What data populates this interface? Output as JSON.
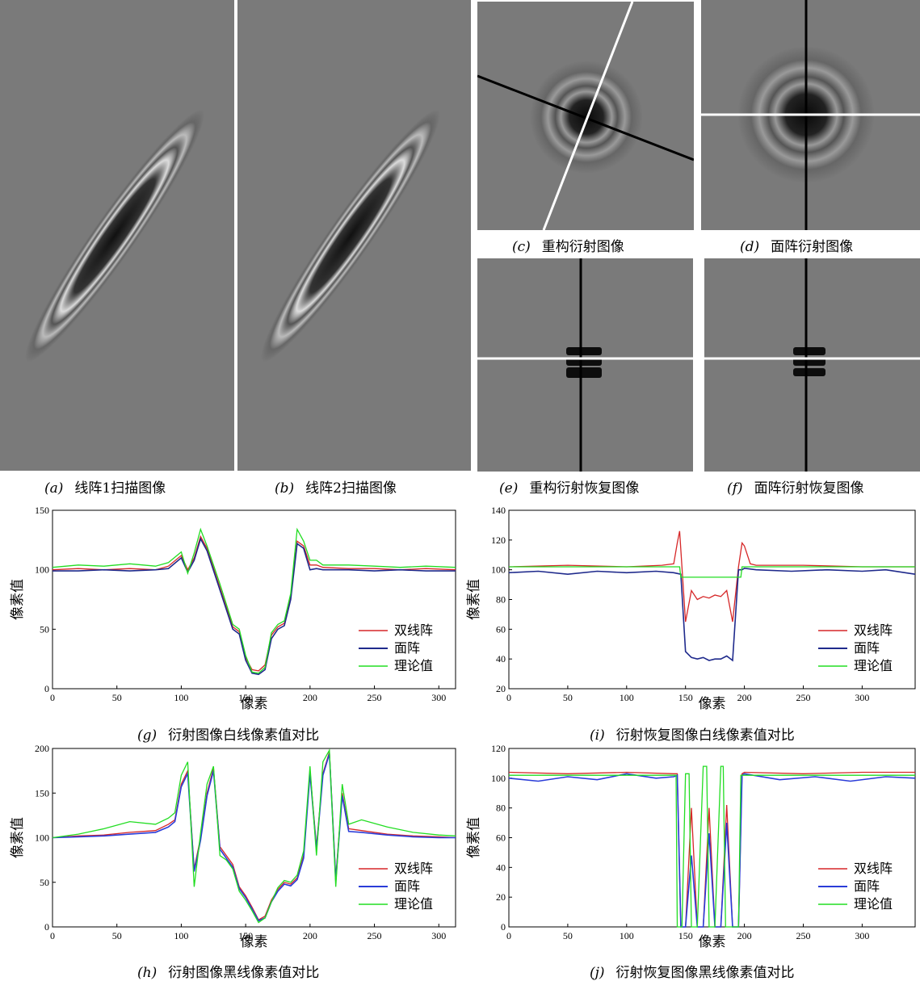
{
  "captions": {
    "a": {
      "label": "(a)",
      "text": "线阵1扫描图像"
    },
    "b": {
      "label": "(b)",
      "text": "线阵2扫描图像"
    },
    "c": {
      "label": "(c)",
      "text": "重构衍射图像"
    },
    "d": {
      "label": "(d)",
      "text": "面阵衍射图像"
    },
    "e": {
      "label": "(e)",
      "text": "重构衍射恢复图像"
    },
    "f": {
      "label": "(f)",
      "text": "面阵衍射恢复图像"
    },
    "g": {
      "label": "(g)",
      "text": "衍射图像白线像素值对比"
    },
    "h": {
      "label": "(h)",
      "text": "衍射图像黑线像素值对比"
    },
    "i": {
      "label": "(i)",
      "text": "衍射恢复图像白线像素值对比"
    },
    "j": {
      "label": "(j)",
      "text": "衍射恢复图像黑线像素值对比"
    }
  },
  "chart_data": [
    {
      "id": "g",
      "type": "line",
      "xlabel": "像素",
      "ylabel": "像素值",
      "xlim": [
        0,
        313
      ],
      "ylim": [
        0,
        150
      ],
      "xticks": [
        0,
        50,
        100,
        150,
        200,
        250,
        300
      ],
      "yticks": [
        0,
        50,
        100,
        150
      ],
      "legend_position": "bottom-right",
      "series": [
        {
          "name": "双线阵",
          "color": "#d62728",
          "x": [
            0,
            20,
            40,
            60,
            80,
            90,
            100,
            105,
            110,
            115,
            120,
            130,
            140,
            145,
            150,
            155,
            160,
            165,
            170,
            175,
            180,
            185,
            190,
            195,
            200,
            205,
            210,
            230,
            250,
            270,
            290,
            313
          ],
          "y": [
            100,
            101,
            100,
            101,
            100,
            103,
            112,
            100,
            110,
            128,
            118,
            85,
            52,
            48,
            26,
            16,
            15,
            20,
            45,
            52,
            55,
            78,
            124,
            120,
            104,
            104,
            102,
            101,
            101,
            100,
            101,
            100
          ]
        },
        {
          "name": "面阵",
          "color": "#1f2a8c",
          "x": [
            0,
            20,
            40,
            60,
            80,
            90,
            100,
            105,
            110,
            115,
            120,
            130,
            140,
            145,
            150,
            155,
            160,
            165,
            170,
            175,
            180,
            185,
            190,
            195,
            200,
            205,
            210,
            230,
            250,
            270,
            290,
            313
          ],
          "y": [
            99,
            99,
            100,
            99,
            100,
            101,
            110,
            98,
            108,
            126,
            116,
            83,
            50,
            46,
            24,
            13,
            12,
            16,
            42,
            50,
            53,
            75,
            122,
            118,
            100,
            101,
            100,
            100,
            99,
            100,
            99,
            99
          ]
        },
        {
          "name": "理论值",
          "color": "#22dd22",
          "x": [
            0,
            20,
            40,
            60,
            80,
            90,
            100,
            105,
            110,
            115,
            120,
            130,
            140,
            145,
            150,
            155,
            160,
            165,
            170,
            175,
            180,
            185,
            190,
            195,
            200,
            205,
            210,
            230,
            250,
            270,
            290,
            313
          ],
          "y": [
            102,
            104,
            103,
            105,
            103,
            106,
            115,
            97,
            114,
            134,
            120,
            88,
            54,
            50,
            28,
            14,
            13,
            18,
            47,
            54,
            57,
            80,
            134,
            124,
            108,
            108,
            104,
            104,
            103,
            102,
            103,
            102
          ]
        }
      ]
    },
    {
      "id": "i",
      "type": "line",
      "xlabel": "像素",
      "ylabel": "像素值",
      "xlim": [
        0,
        345
      ],
      "ylim": [
        20,
        140
      ],
      "xticks": [
        0,
        50,
        100,
        150,
        200,
        250,
        300
      ],
      "yticks": [
        20,
        40,
        60,
        80,
        100,
        120,
        140
      ],
      "legend_position": "bottom-right",
      "series": [
        {
          "name": "双线阵",
          "color": "#d62728",
          "x": [
            0,
            50,
            100,
            130,
            140,
            143,
            145,
            150,
            155,
            160,
            165,
            170,
            175,
            180,
            185,
            190,
            195,
            198,
            200,
            205,
            210,
            250,
            300,
            345
          ],
          "y": [
            102,
            103,
            102,
            103,
            104,
            118,
            126,
            65,
            86,
            80,
            82,
            81,
            83,
            82,
            86,
            65,
            102,
            118,
            116,
            104,
            103,
            103,
            102,
            102
          ]
        },
        {
          "name": "面阵",
          "color": "#1f2a8c",
          "x": [
            0,
            25,
            50,
            75,
            100,
            125,
            140,
            146,
            150,
            155,
            160,
            165,
            170,
            175,
            180,
            185,
            190,
            195,
            198,
            200,
            210,
            240,
            270,
            300,
            320,
            345
          ],
          "y": [
            98,
            99,
            97,
            99,
            98,
            99,
            98,
            97,
            45,
            41,
            40,
            41,
            39,
            40,
            40,
            42,
            39,
            100,
            100,
            101,
            100,
            99,
            100,
            99,
            100,
            97
          ]
        },
        {
          "name": "理论值",
          "color": "#22dd22",
          "x": [
            0,
            145,
            146,
            197,
            198,
            345
          ],
          "y": [
            102,
            102,
            95,
            95,
            102,
            102
          ]
        }
      ]
    },
    {
      "id": "h",
      "type": "line",
      "xlabel": "像素",
      "ylabel": "像素值",
      "xlim": [
        0,
        313
      ],
      "ylim": [
        0,
        200
      ],
      "xticks": [
        0,
        50,
        100,
        150,
        200,
        250,
        300
      ],
      "yticks": [
        0,
        50,
        100,
        150,
        200
      ],
      "legend_position": "bottom-right",
      "series": [
        {
          "name": "双线阵",
          "color": "#d62728",
          "x": [
            0,
            20,
            40,
            60,
            80,
            90,
            95,
            100,
            105,
            110,
            115,
            120,
            125,
            130,
            135,
            140,
            145,
            150,
            155,
            160,
            165,
            170,
            175,
            180,
            185,
            190,
            195,
            200,
            205,
            210,
            215,
            220,
            225,
            230,
            240,
            260,
            280,
            300,
            313
          ],
          "y": [
            100,
            102,
            103,
            106,
            108,
            115,
            120,
            160,
            175,
            65,
            100,
            150,
            178,
            90,
            80,
            70,
            45,
            35,
            22,
            8,
            12,
            30,
            42,
            50,
            48,
            55,
            80,
            175,
            90,
            172,
            196,
            55,
            150,
            110,
            108,
            104,
            102,
            101,
            100
          ]
        },
        {
          "name": "面阵",
          "color": "#2a3cd8",
          "x": [
            0,
            20,
            40,
            60,
            80,
            90,
            95,
            100,
            105,
            110,
            115,
            120,
            125,
            130,
            135,
            140,
            145,
            150,
            155,
            160,
            165,
            170,
            175,
            180,
            185,
            190,
            195,
            200,
            205,
            210,
            215,
            220,
            225,
            230,
            240,
            260,
            280,
            300,
            313
          ],
          "y": [
            100,
            101,
            102,
            104,
            106,
            112,
            118,
            157,
            172,
            62,
            97,
            147,
            175,
            87,
            77,
            67,
            43,
            33,
            20,
            7,
            10,
            28,
            40,
            48,
            46,
            53,
            77,
            172,
            87,
            170,
            194,
            52,
            147,
            107,
            106,
            103,
            101,
            100,
            100
          ]
        },
        {
          "name": "理论值",
          "color": "#22dd22",
          "x": [
            0,
            20,
            40,
            60,
            80,
            90,
            95,
            100,
            105,
            110,
            115,
            120,
            125,
            130,
            135,
            140,
            145,
            150,
            155,
            160,
            165,
            170,
            175,
            180,
            185,
            190,
            195,
            200,
            205,
            210,
            215,
            220,
            225,
            230,
            240,
            260,
            280,
            300,
            313
          ],
          "y": [
            100,
            104,
            110,
            118,
            115,
            122,
            128,
            170,
            185,
            45,
            105,
            160,
            180,
            80,
            75,
            65,
            40,
            30,
            18,
            5,
            10,
            28,
            44,
            52,
            50,
            58,
            85,
            180,
            80,
            185,
            198,
            45,
            160,
            115,
            120,
            112,
            106,
            103,
            102
          ]
        }
      ]
    },
    {
      "id": "j",
      "type": "line",
      "xlabel": "像素",
      "ylabel": "像素值",
      "xlim": [
        0,
        345
      ],
      "ylim": [
        0,
        120
      ],
      "xticks": [
        0,
        50,
        100,
        150,
        200,
        250,
        300
      ],
      "yticks": [
        0,
        20,
        40,
        60,
        80,
        100,
        120
      ],
      "legend_position": "bottom-right",
      "series": [
        {
          "name": "双线阵",
          "color": "#d62728",
          "x": [
            0,
            50,
            100,
            140,
            143,
            146,
            150,
            155,
            160,
            165,
            170,
            175,
            180,
            185,
            190,
            195,
            198,
            200,
            250,
            300,
            345
          ],
          "y": [
            104,
            103,
            104,
            103,
            103,
            0,
            0,
            80,
            0,
            0,
            80,
            0,
            0,
            82,
            0,
            0,
            103,
            104,
            103,
            104,
            104
          ]
        },
        {
          "name": "面阵",
          "color": "#2a3cd8",
          "x": [
            0,
            25,
            50,
            75,
            100,
            125,
            140,
            143,
            146,
            150,
            155,
            160,
            165,
            170,
            175,
            180,
            185,
            190,
            195,
            198,
            200,
            230,
            260,
            290,
            320,
            345
          ],
          "y": [
            100,
            98,
            101,
            99,
            103,
            100,
            101,
            102,
            0,
            0,
            48,
            0,
            0,
            63,
            0,
            0,
            70,
            0,
            0,
            102,
            103,
            99,
            101,
            98,
            101,
            100
          ]
        },
        {
          "name": "理论值",
          "color": "#22dd22",
          "x": [
            0,
            142,
            143,
            147,
            150,
            153,
            155,
            157,
            160,
            165,
            168,
            170,
            172,
            175,
            180,
            182,
            184,
            186,
            190,
            195,
            197,
            198,
            345
          ],
          "y": [
            102,
            102,
            0,
            0,
            103,
            103,
            0,
            0,
            0,
            108,
            108,
            0,
            0,
            0,
            108,
            108,
            0,
            0,
            0,
            0,
            102,
            102,
            102
          ]
        }
      ]
    }
  ]
}
